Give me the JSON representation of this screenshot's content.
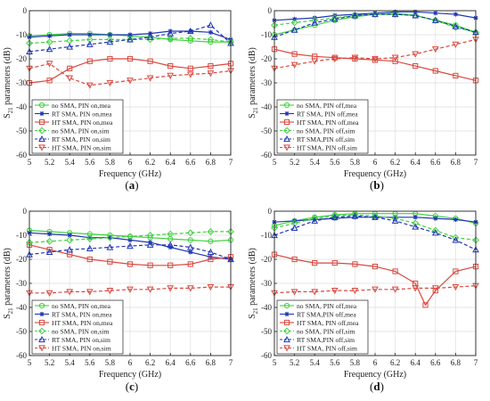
{
  "figure": {
    "xlabel": "Frequency (GHz)",
    "ylabel_main": "S",
    "ylabel_sub": "21",
    "ylabel_tail": " parameters (dB)"
  },
  "colors": {
    "green": "#3fd13f",
    "blue": "#1f35b5",
    "red": "#d9463d"
  },
  "chart_data": [
    {
      "panel": "(a)",
      "type": "line",
      "xlabel": "Frequency (GHz)",
      "ylabel": "S21 parameters (dB)",
      "xlim": [
        5,
        7
      ],
      "ylim": [
        -60,
        0
      ],
      "xticks": [
        "5",
        "5.2",
        "5.4",
        "5.6",
        "5.8",
        "6",
        "6.2",
        "6.4",
        "6.6",
        "6.8",
        "7"
      ],
      "yticks": [
        "0",
        "-10",
        "-20",
        "-30",
        "-40",
        "-50",
        "-60"
      ],
      "grid": true,
      "legend_position": "bottom-left",
      "series": [
        {
          "name": "no SMA, PIN on,mea",
          "color": "green",
          "dash": "solid",
          "marker": "circle",
          "x": [
            5,
            5.2,
            5.4,
            5.6,
            5.8,
            6,
            6.2,
            6.4,
            6.6,
            6.8,
            7
          ],
          "y": [
            -10.5,
            -10,
            -9.5,
            -9.5,
            -10,
            -10.5,
            -11,
            -12,
            -12.5,
            -13,
            -13
          ]
        },
        {
          "name": "RT SMA, PIN on,mea",
          "color": "blue",
          "dash": "solid",
          "marker": "star",
          "x": [
            5,
            5.2,
            5.4,
            5.6,
            5.8,
            6,
            6.2,
            6.4,
            6.6,
            6.8,
            7
          ],
          "y": [
            -11,
            -10.5,
            -10,
            -10,
            -10,
            -10,
            -9.5,
            -8.5,
            -8.5,
            -9,
            -12
          ]
        },
        {
          "name": "HT SMA, PIN on,mea",
          "color": "red",
          "dash": "solid",
          "marker": "square",
          "x": [
            5,
            5.2,
            5.4,
            5.6,
            5.8,
            6,
            6.2,
            6.4,
            6.6,
            6.8,
            7
          ],
          "y": [
            -30,
            -29,
            -24,
            -21,
            -20,
            -20,
            -21,
            -23,
            -24,
            -23,
            -22
          ]
        },
        {
          "name": "no SMA, PIN on,sim",
          "color": "green",
          "dash": "dashed",
          "marker": "diamond",
          "x": [
            5,
            5.2,
            5.4,
            5.6,
            5.8,
            6,
            6.2,
            6.4,
            6.6,
            6.8,
            7
          ],
          "y": [
            -13.5,
            -13,
            -12.5,
            -12,
            -12,
            -12,
            -12,
            -11.5,
            -11.5,
            -12,
            -13
          ]
        },
        {
          "name": "RT SMA, PIN on,sim",
          "color": "blue",
          "dash": "dashed",
          "marker": "triangle-up",
          "x": [
            5,
            5.2,
            5.4,
            5.6,
            5.8,
            6,
            6.2,
            6.4,
            6.6,
            6.8,
            7
          ],
          "y": [
            -17,
            -16,
            -15,
            -14,
            -13,
            -12,
            -11,
            -9.5,
            -8.5,
            -6,
            -13.5
          ]
        },
        {
          "name": "HT SMA, PIN on,sim",
          "color": "red",
          "dash": "dashed",
          "marker": "triangle-down",
          "x": [
            5,
            5.2,
            5.4,
            5.6,
            5.8,
            6,
            6.2,
            6.4,
            6.6,
            6.8,
            7
          ],
          "y": [
            -24,
            -22,
            -28,
            -31,
            -30,
            -29,
            -28,
            -27,
            -26.5,
            -26,
            -25
          ]
        }
      ]
    },
    {
      "panel": "(b)",
      "type": "line",
      "xlabel": "Frequency (GHz)",
      "ylabel": "S21 parameters (dB)",
      "xlim": [
        5,
        7
      ],
      "ylim": [
        -60,
        0
      ],
      "xticks": [
        "5",
        "5.2",
        "5.4",
        "5.6",
        "5.8",
        "6",
        "6.2",
        "6.4",
        "6.6",
        "6.8",
        "7"
      ],
      "yticks": [
        "0",
        "-10",
        "-20",
        "-30",
        "-40",
        "-50",
        "-60"
      ],
      "grid": true,
      "legend_position": "bottom-left",
      "series": [
        {
          "name": "no SMA, PIN off,mea",
          "color": "green",
          "dash": "solid",
          "marker": "circle",
          "x": [
            5,
            5.2,
            5.4,
            5.6,
            5.8,
            6,
            6.2,
            6.4,
            6.6,
            6.8,
            7
          ],
          "y": [
            -10,
            -8,
            -6,
            -4,
            -2.5,
            -1.5,
            -1,
            -2,
            -4,
            -6,
            -9
          ]
        },
        {
          "name": "RT SMA, PIN off,mea",
          "color": "blue",
          "dash": "solid",
          "marker": "star",
          "x": [
            5,
            5.2,
            5.4,
            5.6,
            5.8,
            6,
            6.2,
            6.4,
            6.6,
            6.8,
            7
          ],
          "y": [
            -4,
            -3.5,
            -3,
            -2,
            -1.5,
            -1,
            -0.5,
            -0.5,
            -1,
            -1.5,
            -3
          ]
        },
        {
          "name": "HT SMA, PIN off,mea",
          "color": "red",
          "dash": "solid",
          "marker": "square",
          "x": [
            5,
            5.2,
            5.4,
            5.6,
            5.8,
            6,
            6.2,
            6.4,
            6.6,
            6.8,
            7
          ],
          "y": [
            -16,
            -18,
            -19,
            -19.5,
            -20,
            -20.5,
            -21,
            -23,
            -25,
            -27,
            -29
          ]
        },
        {
          "name": "no SMA, PIN off,sim",
          "color": "green",
          "dash": "dashed",
          "marker": "diamond",
          "x": [
            5,
            5.2,
            5.4,
            5.6,
            5.8,
            6,
            6.2,
            6.4,
            6.6,
            6.8,
            7
          ],
          "y": [
            -6,
            -5,
            -4,
            -3,
            -2,
            -1.5,
            -1.5,
            -2,
            -4,
            -7,
            -9
          ]
        },
        {
          "name": "RT SMA,PIN off,sim",
          "color": "blue",
          "dash": "dashed",
          "marker": "triangle-up",
          "x": [
            5,
            5.2,
            5.4,
            5.6,
            5.8,
            6,
            6.2,
            6.4,
            6.6,
            6.8,
            7
          ],
          "y": [
            -11,
            -8,
            -5,
            -3.5,
            -2,
            -1.5,
            -1.5,
            -2,
            -4,
            -6.5,
            -9
          ]
        },
        {
          "name": "HT SMA, PIN off,sim",
          "color": "red",
          "dash": "dashed",
          "marker": "triangle-down",
          "x": [
            5,
            5.2,
            5.4,
            5.6,
            5.8,
            6,
            6.2,
            6.4,
            6.6,
            6.8,
            7
          ],
          "y": [
            -24,
            -22.5,
            -21,
            -20,
            -19.5,
            -20,
            -19.5,
            -18,
            -16,
            -14,
            -12
          ]
        }
      ]
    },
    {
      "panel": "(c)",
      "type": "line",
      "xlabel": "Frequency (GHz)",
      "ylabel": "S21 parameters (dB)",
      "xlim": [
        5,
        7
      ],
      "ylim": [
        -60,
        0
      ],
      "xticks": [
        "5",
        "5.2",
        "5.4",
        "5.6",
        "5.8",
        "6",
        "6.2",
        "6.4",
        "6.6",
        "6.8",
        "7"
      ],
      "yticks": [
        "0",
        "-10",
        "-20",
        "-30",
        "-40",
        "-50",
        "-60"
      ],
      "grid": true,
      "legend_position": "bottom-left",
      "series": [
        {
          "name": "no SMA, PIN on,mea",
          "color": "green",
          "dash": "solid",
          "marker": "circle",
          "x": [
            5,
            5.2,
            5.4,
            5.6,
            5.8,
            6,
            6.2,
            6.4,
            6.6,
            6.8,
            7
          ],
          "y": [
            -8,
            -8.5,
            -9,
            -9.5,
            -10,
            -10.5,
            -11,
            -11.5,
            -12,
            -12.5,
            -12
          ]
        },
        {
          "name": "RT SMA, PIN on,mea",
          "color": "blue",
          "dash": "solid",
          "marker": "star",
          "x": [
            5,
            5.2,
            5.4,
            5.6,
            5.8,
            6,
            6.2,
            6.4,
            6.6,
            6.8,
            7
          ],
          "y": [
            -9,
            -9.5,
            -10,
            -11,
            -11,
            -12,
            -13,
            -15,
            -17,
            -19,
            -20
          ]
        },
        {
          "name": "HT SMA, PIN on,mea",
          "color": "red",
          "dash": "solid",
          "marker": "square",
          "x": [
            5,
            5.2,
            5.4,
            5.6,
            5.8,
            6,
            6.2,
            6.4,
            6.6,
            6.8,
            7
          ],
          "y": [
            -14,
            -16,
            -18,
            -20,
            -21,
            -22,
            -22.5,
            -22.5,
            -22,
            -20,
            -19
          ]
        },
        {
          "name": "no SMA, PIN on,sim",
          "color": "green",
          "dash": "dashed",
          "marker": "diamond",
          "x": [
            5,
            5.2,
            5.4,
            5.6,
            5.8,
            6,
            6.2,
            6.4,
            6.6,
            6.8,
            7
          ],
          "y": [
            -13,
            -12.5,
            -12,
            -11.5,
            -11,
            -10.5,
            -10,
            -9.5,
            -9,
            -8.5,
            -8.5
          ]
        },
        {
          "name": "RT SMA, PIN on,sim",
          "color": "blue",
          "dash": "dashed",
          "marker": "triangle-up",
          "x": [
            5,
            5.2,
            5.4,
            5.6,
            5.8,
            6,
            6.2,
            6.4,
            6.6,
            6.8,
            7
          ],
          "y": [
            -18,
            -17,
            -16,
            -15.5,
            -15,
            -14.5,
            -14,
            -14,
            -15,
            -17,
            -20
          ]
        },
        {
          "name": "HT SMA, PIN on,sim",
          "color": "red",
          "dash": "dashed",
          "marker": "triangle-down",
          "x": [
            5,
            5.2,
            5.4,
            5.6,
            5.8,
            6,
            6.2,
            6.4,
            6.6,
            6.8,
            7
          ],
          "y": [
            -34,
            -34,
            -33.5,
            -33.5,
            -33,
            -32.5,
            -32.5,
            -32,
            -32,
            -31.5,
            -31.5
          ]
        }
      ]
    },
    {
      "panel": "(d)",
      "type": "line",
      "xlabel": "Frequency (GHz)",
      "ylabel": "S21 parameters (dB)",
      "xlim": [
        5,
        7
      ],
      "ylim": [
        -60,
        0
      ],
      "xticks": [
        "5",
        "5.2",
        "5.4",
        "5.6",
        "5.8",
        "6",
        "6.2",
        "6.4",
        "6.6",
        "6.8",
        "7"
      ],
      "yticks": [
        "0",
        "-10",
        "-20",
        "-30",
        "-40",
        "-50",
        "-60"
      ],
      "grid": true,
      "legend_position": "bottom-left",
      "series": [
        {
          "name": "no SMA, PIN off,mea",
          "color": "green",
          "dash": "solid",
          "marker": "circle",
          "x": [
            5,
            5.2,
            5.4,
            5.6,
            5.8,
            6,
            6.2,
            6.4,
            6.6,
            6.8,
            7
          ],
          "y": [
            -6,
            -4,
            -2.5,
            -1.5,
            -1,
            -1,
            -1,
            -1,
            -2,
            -3,
            -5
          ]
        },
        {
          "name": "RT SMA,PIN off,mea",
          "color": "blue",
          "dash": "solid",
          "marker": "star",
          "x": [
            5,
            5.2,
            5.4,
            5.6,
            5.8,
            6,
            6.2,
            6.4,
            6.6,
            6.8,
            7
          ],
          "y": [
            -4.5,
            -4,
            -3.5,
            -3,
            -2.5,
            -2.5,
            -2.5,
            -2.5,
            -3,
            -3.5,
            -4.5
          ]
        },
        {
          "name": "HT SMA, PIN off,mea",
          "color": "red",
          "dash": "solid",
          "marker": "square",
          "x": [
            5,
            5.2,
            5.4,
            5.6,
            5.8,
            6,
            6.2,
            6.4,
            6.5,
            6.6,
            6.8,
            7
          ],
          "y": [
            -18,
            -20,
            -21.5,
            -21.5,
            -22,
            -23,
            -25,
            -30,
            -39,
            -33,
            -25,
            -23
          ]
        },
        {
          "name": "no SMA, PIN off,sim",
          "color": "green",
          "dash": "dashed",
          "marker": "diamond",
          "x": [
            5,
            5.2,
            5.4,
            5.6,
            5.8,
            6,
            6.2,
            6.4,
            6.6,
            6.8,
            7
          ],
          "y": [
            -7,
            -5,
            -3,
            -2,
            -1.5,
            -2,
            -3,
            -5,
            -8,
            -11,
            -12
          ]
        },
        {
          "name": "RT SMA,PIN off,sim",
          "color": "blue",
          "dash": "dashed",
          "marker": "triangle-up",
          "x": [
            5,
            5.2,
            5.4,
            5.6,
            5.8,
            6,
            6.2,
            6.4,
            6.6,
            6.8,
            7
          ],
          "y": [
            -10,
            -7,
            -4,
            -2.5,
            -2,
            -2.5,
            -4,
            -6.5,
            -9,
            -12,
            -16
          ]
        },
        {
          "name": "HT SMA, PIN off,sim",
          "color": "red",
          "dash": "dashed",
          "marker": "triangle-down",
          "x": [
            5,
            5.2,
            5.4,
            5.6,
            5.8,
            6,
            6.2,
            6.4,
            6.6,
            6.8,
            7
          ],
          "y": [
            -34,
            -33.5,
            -33.5,
            -33,
            -33,
            -32.5,
            -32.5,
            -32,
            -32,
            -31.5,
            -31
          ]
        }
      ]
    }
  ]
}
